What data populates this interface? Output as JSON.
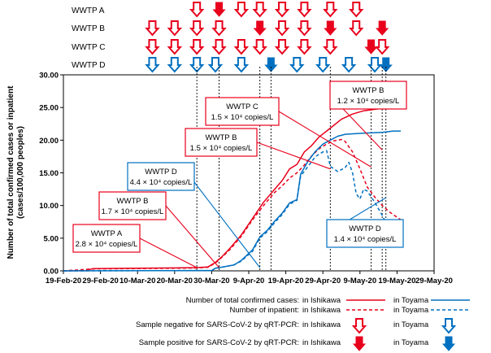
{
  "chart_data": {
    "type": "line",
    "ylabel_line1": "Number of total confirmed cases or inpatient",
    "ylabel_line2": "(cases/100,000 peoples)",
    "y_ticks": [
      "0.00",
      "5.00",
      "10.00",
      "15.00",
      "20.00",
      "25.00",
      "30.00"
    ],
    "ylim": [
      0,
      30
    ],
    "x_ticks": [
      "19-Feb-20",
      "29-Feb-20",
      "10-Mar-20",
      "20-Mar-20",
      "30-Mar-20",
      "9-Apr-20",
      "19-Apr-20",
      "29-Apr-20",
      "9-May-20",
      "19-May-20",
      "29-May-20"
    ],
    "x_tick_days": [
      0,
      10,
      20,
      30,
      40,
      50,
      60,
      70,
      80,
      90,
      100
    ],
    "xlim_days": [
      0,
      100
    ],
    "x_day0": "19-Feb-20",
    "grid": false,
    "colors": {
      "ishikawa": "#e8001c",
      "toyama": "#0070c0"
    },
    "series": [
      {
        "name": "Number of total confirmed cases: in Ishikawa",
        "style": "solid",
        "color": "#e8001c",
        "points": [
          [
            0,
            0
          ],
          [
            6,
            0.05
          ],
          [
            8,
            0.35
          ],
          [
            30,
            0.45
          ],
          [
            36,
            0.5
          ],
          [
            39,
            0.6
          ],
          [
            41,
            1.3
          ],
          [
            43,
            2.3
          ],
          [
            45,
            3.5
          ],
          [
            48,
            5.5
          ],
          [
            51,
            8.0
          ],
          [
            54,
            10.5
          ],
          [
            57,
            12.5
          ],
          [
            59,
            13.8
          ],
          [
            61,
            15.6
          ],
          [
            63,
            16.3
          ],
          [
            65,
            18.2
          ],
          [
            67,
            19.2
          ],
          [
            69,
            20.5
          ],
          [
            71,
            21.4
          ],
          [
            73,
            22.3
          ],
          [
            75,
            23.2
          ],
          [
            78,
            24.0
          ],
          [
            81,
            24.5
          ],
          [
            85,
            24.8
          ],
          [
            88,
            25.0
          ],
          [
            91,
            25.2
          ]
        ]
      },
      {
        "name": "Number of inpatient: in Ishikawa",
        "style": "dashed",
        "color": "#e8001c",
        "points": [
          [
            0,
            0
          ],
          [
            8,
            0.3
          ],
          [
            30,
            0.4
          ],
          [
            36,
            0.45
          ],
          [
            39,
            0.55
          ],
          [
            41,
            1.2
          ],
          [
            43,
            2.2
          ],
          [
            45,
            3.3
          ],
          [
            48,
            5.3
          ],
          [
            51,
            7.8
          ],
          [
            54,
            10.0
          ],
          [
            57,
            12.0
          ],
          [
            59,
            13.0
          ],
          [
            61,
            14.2
          ],
          [
            63,
            15.0
          ],
          [
            65,
            16.2
          ],
          [
            67,
            17.6
          ],
          [
            69,
            18.7
          ],
          [
            71,
            19.4
          ],
          [
            73,
            19.9
          ],
          [
            75,
            20.1
          ],
          [
            76,
            19.8
          ],
          [
            78,
            18.2
          ],
          [
            80,
            15.6
          ],
          [
            82,
            12.8
          ],
          [
            84,
            11.3
          ],
          [
            86,
            10.0
          ],
          [
            88,
            9.0
          ],
          [
            90,
            8.2
          ],
          [
            91,
            7.8
          ]
        ]
      },
      {
        "name": "Number of total confirmed cases: in Toyama",
        "style": "solid",
        "color": "#0070c0",
        "points": [
          [
            0,
            0
          ],
          [
            40,
            0.05
          ],
          [
            41,
            0.4
          ],
          [
            43,
            0.6
          ],
          [
            46,
            0.9
          ],
          [
            48,
            1.6
          ],
          [
            51,
            3.2
          ],
          [
            53,
            5.2
          ],
          [
            55,
            6.2
          ],
          [
            57,
            7.6
          ],
          [
            59,
            8.8
          ],
          [
            61,
            10.4
          ],
          [
            63,
            10.9
          ],
          [
            64,
            14.8
          ],
          [
            66,
            16.8
          ],
          [
            68,
            18.3
          ],
          [
            70,
            19.4
          ],
          [
            72,
            20.0
          ],
          [
            74,
            20.6
          ],
          [
            76,
            20.9
          ],
          [
            79,
            21.0
          ],
          [
            82,
            21.1
          ],
          [
            86,
            21.2
          ],
          [
            89,
            21.4
          ],
          [
            91,
            21.4
          ]
        ]
      },
      {
        "name": "Number of inpatient: in Toyama",
        "style": "dashed",
        "color": "#0070c0",
        "points": [
          [
            0,
            0
          ],
          [
            40,
            0.05
          ],
          [
            41,
            0.4
          ],
          [
            43,
            0.6
          ],
          [
            46,
            0.9
          ],
          [
            48,
            1.5
          ],
          [
            51,
            3.0
          ],
          [
            53,
            5.0
          ],
          [
            55,
            6.0
          ],
          [
            57,
            7.4
          ],
          [
            59,
            8.6
          ],
          [
            61,
            10.2
          ],
          [
            63,
            10.8
          ],
          [
            64,
            14.5
          ],
          [
            66,
            16.0
          ],
          [
            68,
            17.5
          ],
          [
            70,
            18.2
          ],
          [
            71,
            18.4
          ],
          [
            72,
            16.0
          ],
          [
            74,
            15.2
          ],
          [
            76,
            15.8
          ],
          [
            77,
            16.6
          ],
          [
            78,
            15.0
          ],
          [
            79,
            11.8
          ],
          [
            80,
            11.0
          ],
          [
            81,
            12.5
          ],
          [
            82,
            12.2
          ],
          [
            84,
            10.5
          ],
          [
            86,
            8.5
          ],
          [
            88,
            6.2
          ],
          [
            90,
            5.0
          ],
          [
            91,
            4.9
          ]
        ]
      }
    ],
    "arrow_rows": [
      {
        "label": "WWTP A",
        "color": "#e8001c",
        "arrows": [
          {
            "day": 36,
            "positive": false
          },
          {
            "day": 42,
            "positive": true
          },
          {
            "day": 48,
            "positive": false
          },
          {
            "day": 53,
            "positive": false
          },
          {
            "day": 59,
            "positive": false
          },
          {
            "day": 65,
            "positive": false
          },
          {
            "day": 72,
            "positive": false
          },
          {
            "day": 79,
            "positive": false
          }
        ]
      },
      {
        "label": "WWTP B",
        "color": "#e8001c",
        "arrows": [
          {
            "day": 24,
            "positive": false
          },
          {
            "day": 30,
            "positive": false
          },
          {
            "day": 36,
            "positive": false
          },
          {
            "day": 42,
            "positive": false
          },
          {
            "day": 53,
            "positive": true
          },
          {
            "day": 59,
            "positive": false
          },
          {
            "day": 65,
            "positive": false
          },
          {
            "day": 72,
            "positive": true
          },
          {
            "day": 79,
            "positive": false
          },
          {
            "day": 86,
            "positive": true
          }
        ]
      },
      {
        "label": "WWTP C",
        "color": "#e8001c",
        "arrows": [
          {
            "day": 24,
            "positive": false
          },
          {
            "day": 30,
            "positive": false
          },
          {
            "day": 36,
            "positive": false
          },
          {
            "day": 42,
            "positive": false
          },
          {
            "day": 48,
            "positive": false
          },
          {
            "day": 53,
            "positive": false
          },
          {
            "day": 59,
            "positive": false
          },
          {
            "day": 65,
            "positive": false
          },
          {
            "day": 72,
            "positive": false
          },
          {
            "day": 83,
            "positive": true
          },
          {
            "day": 86,
            "positive": false
          }
        ]
      },
      {
        "label": "WWTP D",
        "color": "#0070c0",
        "arrows": [
          {
            "day": 24,
            "positive": false
          },
          {
            "day": 30,
            "positive": false
          },
          {
            "day": 36,
            "positive": false
          },
          {
            "day": 41,
            "positive": false
          },
          {
            "day": 48,
            "positive": false
          },
          {
            "day": 56,
            "positive": true
          },
          {
            "day": 63,
            "positive": false
          },
          {
            "day": 70,
            "positive": false
          },
          {
            "day": 77,
            "positive": false
          },
          {
            "day": 84,
            "positive": false
          },
          {
            "day": 87,
            "positive": true
          }
        ]
      }
    ],
    "annotations": [
      {
        "line1": "WWTP A",
        "line2": "2.8 × 10⁴ copies/L",
        "color": "#e8001c"
      },
      {
        "line1": "WWTP B",
        "line2": "1.7 × 10⁴ copies/L",
        "color": "#e8001c"
      },
      {
        "line1": "WWTP D",
        "line2": "4.4 × 10⁴ copies/L",
        "color": "#0070c0"
      },
      {
        "line1": "WWTP B",
        "line2": "1.5 × 10⁴ copies/L",
        "color": "#e8001c"
      },
      {
        "line1": "WWTP C",
        "line2": "1.5 × 10⁴ copies/L",
        "color": "#e8001c"
      },
      {
        "line1": "WWTP B",
        "line2": "1.2 × 10⁴ copies/L",
        "color": "#e8001c"
      },
      {
        "line1": "WWTP D",
        "line2": "1.4 × 10⁴ copies/L",
        "color": "#0070c0"
      }
    ],
    "legend": {
      "total_label": "Number of total confirmed cases:",
      "inpatient_label": "Number of inpatient:",
      "negative_label": "Sample negative for SARS-CoV-2 by qRT-PCR:",
      "positive_label": "Sample positive for SARS-CoV-2 by qRT-PCR:",
      "in_ishikawa": "in Ishikawa",
      "in_toyama": "in Toyama"
    }
  }
}
